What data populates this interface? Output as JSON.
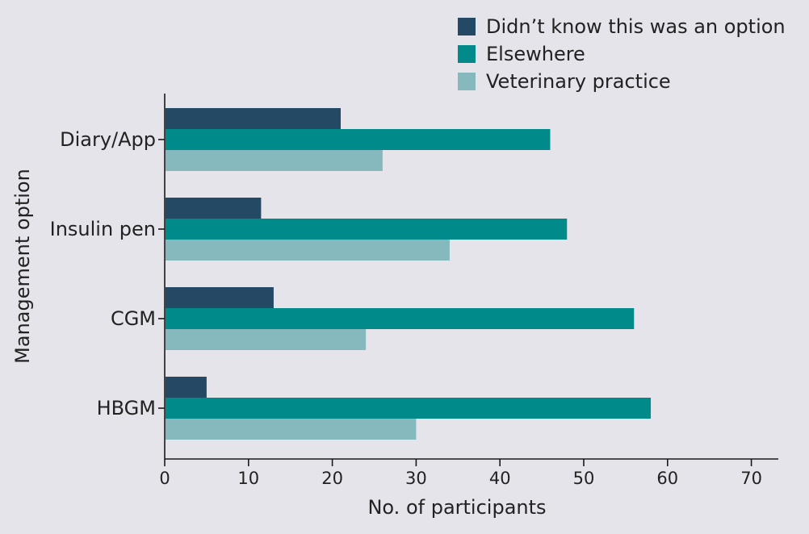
{
  "chart_data": {
    "type": "bar",
    "orientation": "horizontal",
    "categories": [
      "Diary/App",
      "Insulin pen",
      "CGM",
      "HBGM"
    ],
    "series": [
      {
        "name": "Didn’t know this was an option",
        "color": "#234964",
        "values": [
          21,
          11.5,
          13,
          5
        ]
      },
      {
        "name": "Elsewhere",
        "color": "#008a8a",
        "values": [
          46,
          48,
          56,
          58
        ]
      },
      {
        "name": "Veterinary practice",
        "color": "#85b9bd",
        "values": [
          26,
          34,
          24,
          30
        ]
      }
    ],
    "xlabel": "No. of participants",
    "ylabel": "Management option",
    "xlim": [
      0,
      73
    ],
    "xticks": [
      "0",
      "10",
      "20",
      "30",
      "40",
      "50",
      "60",
      "70"
    ],
    "grid": false,
    "legend_position": "top-right"
  }
}
